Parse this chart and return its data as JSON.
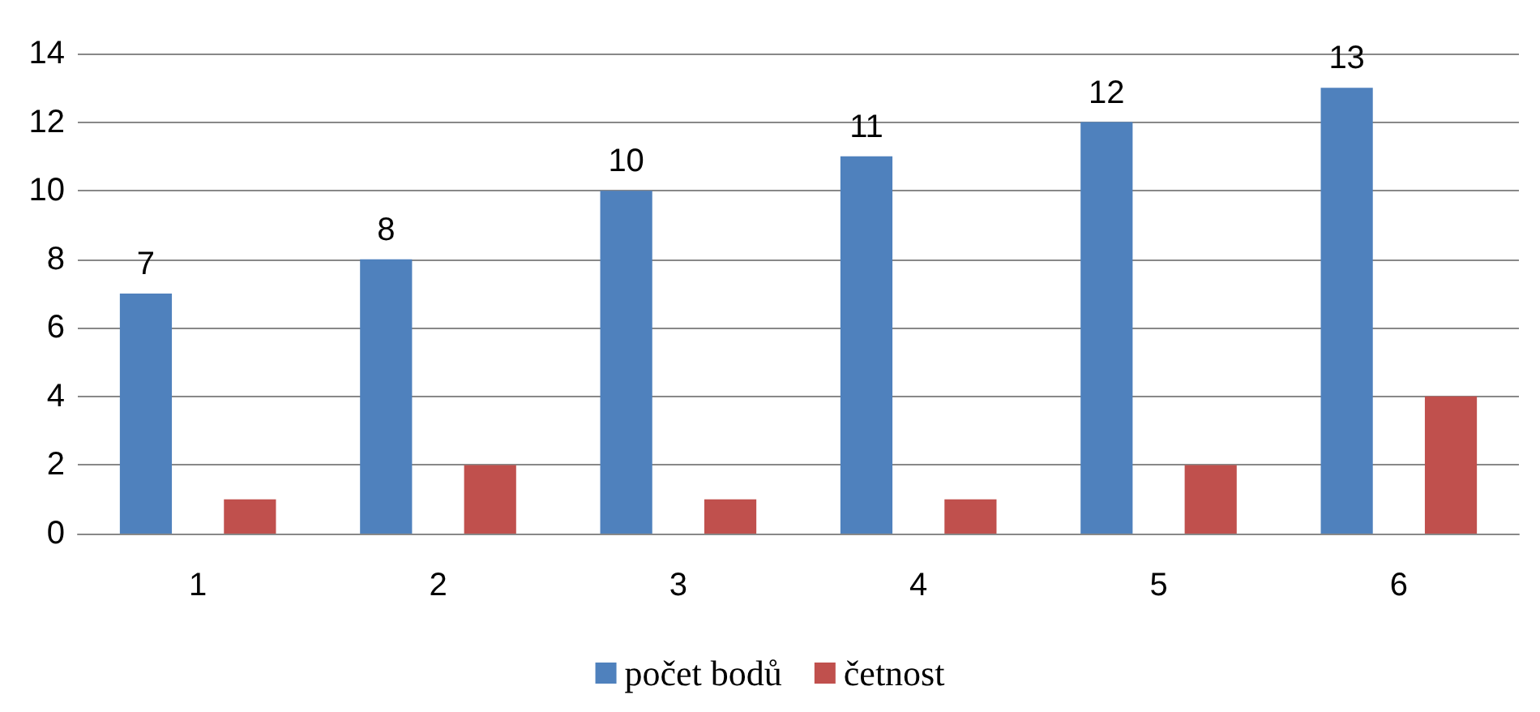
{
  "chart_data": {
    "type": "bar",
    "categories": [
      "1",
      "2",
      "3",
      "4",
      "5",
      "6"
    ],
    "series": [
      {
        "name": "počet bodů",
        "color": "#4f81bd",
        "values": [
          7,
          8,
          10,
          11,
          12,
          13
        ],
        "value_labels": [
          "7",
          "8",
          "10",
          "11",
          "12",
          "13"
        ]
      },
      {
        "name": "četnost",
        "color": "#c0504d",
        "values": [
          1,
          2,
          1,
          1,
          2,
          4
        ]
      }
    ],
    "ylim": [
      0,
      14
    ],
    "yticks": [
      0,
      2,
      4,
      6,
      8,
      10,
      12,
      14
    ],
    "grid": "y",
    "legend": "bottom"
  }
}
